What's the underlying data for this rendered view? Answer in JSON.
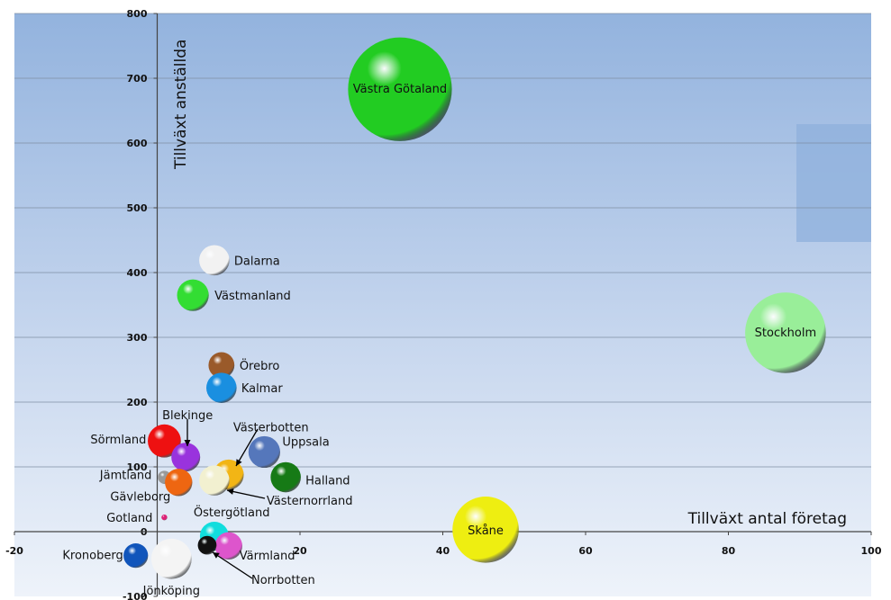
{
  "chart_data": {
    "type": "bubble",
    "title": "",
    "xlabel": "Tillväxt antal företag",
    "ylabel": "Tillväxt anställda",
    "xlim": [
      -20,
      100
    ],
    "ylim": [
      -100,
      800
    ],
    "x_ticks": [
      -20,
      0,
      20,
      40,
      60,
      80,
      100
    ],
    "y_ticks": [
      -100,
      0,
      100,
      200,
      300,
      400,
      500,
      600,
      700,
      800
    ],
    "grid": true,
    "series": [
      {
        "name": "Västra Götaland",
        "x": 34,
        "y": 683,
        "size": 7.2,
        "color": "#22cc22"
      },
      {
        "name": "Stockholm",
        "x": 88,
        "y": 307,
        "size": 5.6,
        "color": "#99ee99"
      },
      {
        "name": "Skåne",
        "x": 46,
        "y": 3,
        "size": 4.6,
        "color": "#eeee11"
      },
      {
        "name": "Dalarna",
        "x": 8,
        "y": 419,
        "size": 2.1,
        "color": "#f2f2f2"
      },
      {
        "name": "Västmanland",
        "x": 5,
        "y": 365,
        "size": 2.2,
        "color": "#33dd33"
      },
      {
        "name": "Örebro",
        "x": 9,
        "y": 257,
        "size": 1.8,
        "color": "#9a5a2a"
      },
      {
        "name": "Kalmar",
        "x": 9,
        "y": 222,
        "size": 2.1,
        "color": "#1a8fe0"
      },
      {
        "name": "Sörmland",
        "x": 1,
        "y": 140,
        "size": 2.3,
        "color": "#ee1111"
      },
      {
        "name": "Blekinge",
        "x": 4,
        "y": 115,
        "size": 2.0,
        "color": "#9933dd"
      },
      {
        "name": "Västerbotten",
        "x": 10,
        "y": 88,
        "size": 2.1,
        "color": "#f2b515"
      },
      {
        "name": "Uppsala",
        "x": 15,
        "y": 123,
        "size": 2.2,
        "color": "#5577bb"
      },
      {
        "name": "Halland",
        "x": 18,
        "y": 84,
        "size": 2.1,
        "color": "#167a16"
      },
      {
        "name": "Jämtland",
        "x": 1,
        "y": 84,
        "size": 0.9,
        "color": "#999999"
      },
      {
        "name": "Gävleborg",
        "x": 3,
        "y": 76,
        "size": 1.9,
        "color": "#ee6611"
      },
      {
        "name": "Västernorrland",
        "x": 8,
        "y": 79,
        "size": 2.1,
        "color": "#f2f0d0"
      },
      {
        "name": "Gotland",
        "x": 1,
        "y": 22,
        "size": 0.4,
        "color": "#dd2277"
      },
      {
        "name": "Östergötland",
        "x": 8,
        "y": -7,
        "size": 2.0,
        "color": "#11dddd"
      },
      {
        "name": "Värmland",
        "x": 10,
        "y": -22,
        "size": 1.9,
        "color": "#dd55cc"
      },
      {
        "name": "Kronoberg",
        "x": -3,
        "y": -37,
        "size": 1.7,
        "color": "#1155bb"
      },
      {
        "name": "Jönköping",
        "x": 2,
        "y": -42,
        "size": 2.8,
        "color": "#f4f4f4"
      },
      {
        "name": "Norrbotten",
        "x": 7,
        "y": -21,
        "size": 1.3,
        "color": "#111111"
      }
    ]
  }
}
